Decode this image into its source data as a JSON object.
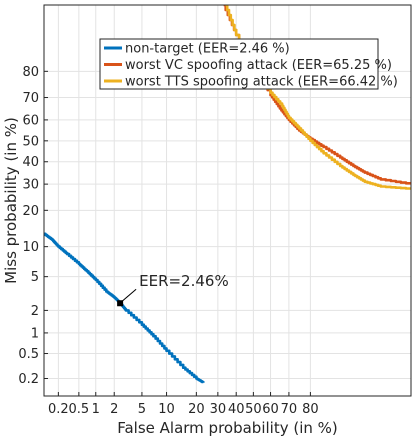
{
  "chart_data": {
    "type": "line",
    "title": "",
    "xlabel": "False Alarm probability (in %)",
    "ylabel": "Miss probability (in %)",
    "scale": "normal-deviate (DET)",
    "grid": true,
    "legend_position": "top-right",
    "xlim": [
      0.1,
      99
    ],
    "ylim": [
      0.1,
      95
    ],
    "x_ticks": [
      0.2,
      0.5,
      1,
      2,
      5,
      10,
      20,
      30,
      40,
      50,
      60,
      70,
      80
    ],
    "x_tick_labels": [
      "0.2",
      "0.5",
      "1",
      "2",
      "5",
      "10",
      "20",
      "30",
      "40",
      "50",
      "60",
      "70",
      "80"
    ],
    "y_ticks": [
      0.2,
      0.5,
      1,
      2,
      5,
      10,
      20,
      30,
      40,
      50,
      60,
      70,
      80
    ],
    "y_tick_labels": [
      "0.2",
      "0.5",
      "1",
      "2",
      "5",
      "10",
      "20",
      "30",
      "40",
      "50",
      "60",
      "70",
      "80"
    ],
    "series": [
      {
        "name": "non-target (EER=2.46 %)",
        "color": "#0072BD",
        "x": [
          0.1,
          0.15,
          0.2,
          0.3,
          0.5,
          0.7,
          1,
          1.5,
          2,
          2.46,
          3,
          5,
          7,
          10,
          15,
          20,
          23
        ],
        "y": [
          13,
          11.5,
          10,
          8.5,
          6.8,
          5.7,
          4.6,
          3.4,
          2.9,
          2.46,
          2.0,
          1.3,
          0.9,
          0.55,
          0.3,
          0.2,
          0.17
        ]
      },
      {
        "name": "worst VC spoofing attack (EER=65.25 %)",
        "color": "#D95319",
        "x": [
          33,
          40,
          50,
          60,
          65.25,
          70,
          75,
          80,
          85,
          90,
          93,
          95,
          97,
          99
        ],
        "y": [
          95,
          90,
          82,
          71,
          65.25,
          60,
          55,
          51,
          47,
          42,
          38,
          35,
          32,
          30
        ]
      },
      {
        "name": "worst TTS spoofing attack (EER=66.42 %)",
        "color": "#EDB120",
        "x": [
          34,
          40,
          50,
          60,
          66.42,
          70,
          75,
          80,
          85,
          90,
          93,
          95,
          97,
          99
        ],
        "y": [
          95,
          90,
          81,
          72,
          66.42,
          61,
          56,
          50,
          44,
          38,
          34,
          31,
          29,
          28
        ]
      }
    ],
    "eer_marker": {
      "x": 2.46,
      "y": 2.46
    },
    "annotations": [
      {
        "text": "EER=2.46%",
        "x": 2.46,
        "y": 2.46
      }
    ]
  }
}
